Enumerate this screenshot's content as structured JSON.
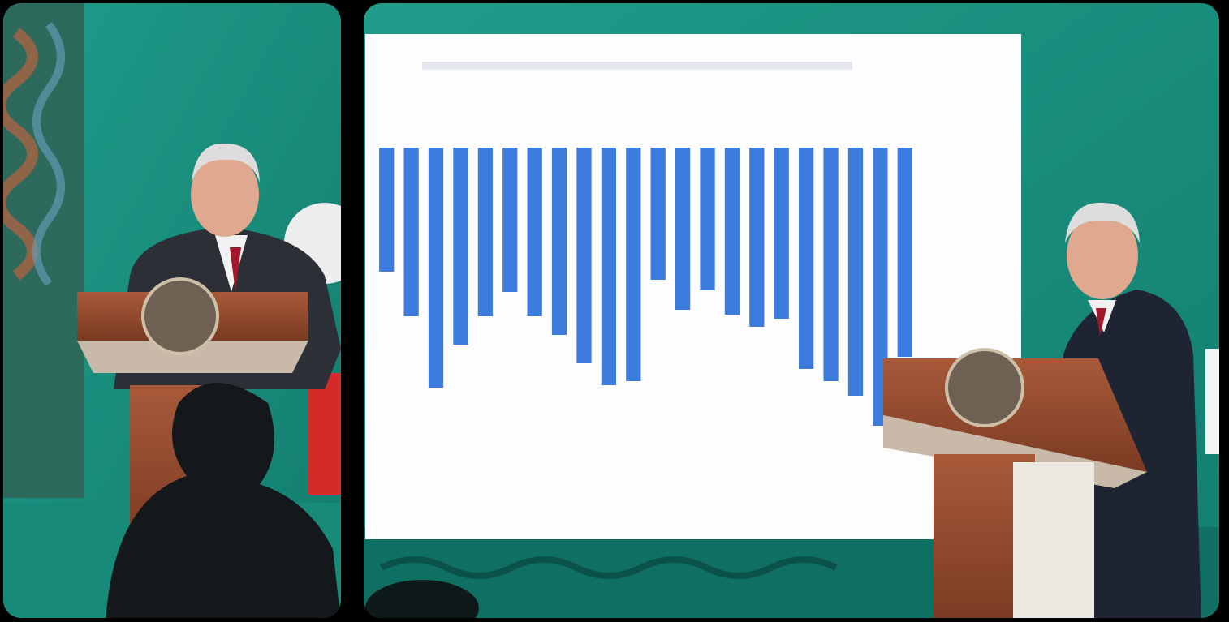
{
  "chart_data": {
    "type": "bar",
    "categories": [
      null,
      null,
      null,
      null,
      null,
      null,
      null,
      null,
      null,
      null,
      null,
      null,
      null,
      null,
      null,
      null,
      null,
      null,
      null,
      null,
      null,
      null
    ],
    "values": [
      153,
      208,
      296,
      243,
      208,
      178,
      208,
      231,
      266,
      293,
      288,
      163,
      200,
      176,
      206,
      221,
      211,
      273,
      288,
      306,
      343,
      258
    ],
    "color": "#3d7bdc",
    "ylim": [
      0,
      350
    ]
  }
}
